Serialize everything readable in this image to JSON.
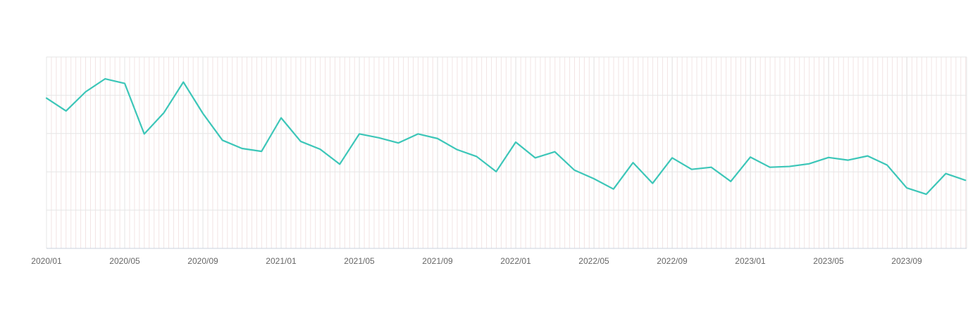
{
  "chart_data": {
    "type": "line",
    "x_tick_labels": [
      "2020/01",
      "2020/05",
      "2020/09",
      "2021/01",
      "2021/05",
      "2021/09",
      "2022/01",
      "2022/05",
      "2022/09",
      "2023/01",
      "2023/05",
      "2023/09"
    ],
    "x": [
      "2020/01",
      "2020/02",
      "2020/03",
      "2020/04",
      "2020/05",
      "2020/06",
      "2020/07",
      "2020/08",
      "2020/09",
      "2020/10",
      "2020/11",
      "2020/12",
      "2021/01",
      "2021/02",
      "2021/03",
      "2021/04",
      "2021/05",
      "2021/06",
      "2021/07",
      "2021/08",
      "2021/09",
      "2021/10",
      "2021/11",
      "2021/12",
      "2022/01",
      "2022/02",
      "2022/03",
      "2022/04",
      "2022/05",
      "2022/06",
      "2022/07",
      "2022/08",
      "2022/09",
      "2022/10",
      "2022/11",
      "2022/12",
      "2023/01",
      "2023/02",
      "2023/03",
      "2023/04",
      "2023/05",
      "2023/06",
      "2023/07",
      "2023/08",
      "2023/09",
      "2023/10",
      "2023/11",
      "2023/12"
    ],
    "series": [
      {
        "values": [
          78.5,
          71.8,
          81.8,
          88.6,
          86.2,
          59.8,
          70.8,
          86.9,
          70.5,
          56.5,
          52.2,
          50.7,
          68.2,
          55.9,
          51.8,
          44.0,
          59.8,
          57.8,
          55.1,
          59.8,
          57.4,
          51.6,
          48.0,
          40.1,
          55.5,
          47.3,
          50.5,
          40.9,
          36.4,
          31.0,
          44.8,
          34.0,
          47.3,
          41.3,
          42.4,
          35.0,
          47.7,
          42.4,
          42.8,
          44.2,
          47.5,
          46.1,
          48.3,
          43.5,
          31.6,
          28.3,
          39.1,
          35.6
        ],
        "color": "#3cc6b8"
      }
    ],
    "ylim": [
      0,
      100
    ],
    "y_gridlines": [
      0,
      20,
      40,
      60,
      80,
      100
    ],
    "y_tick_labels_visible": false,
    "grid": true,
    "legend": "none",
    "colors": {
      "line": "#3cc6b8",
      "grid_major": "#e6e6e6",
      "grid_minor": "#f2e4e4",
      "axis": "#c9d0dd",
      "tick_label": "#666666"
    }
  }
}
